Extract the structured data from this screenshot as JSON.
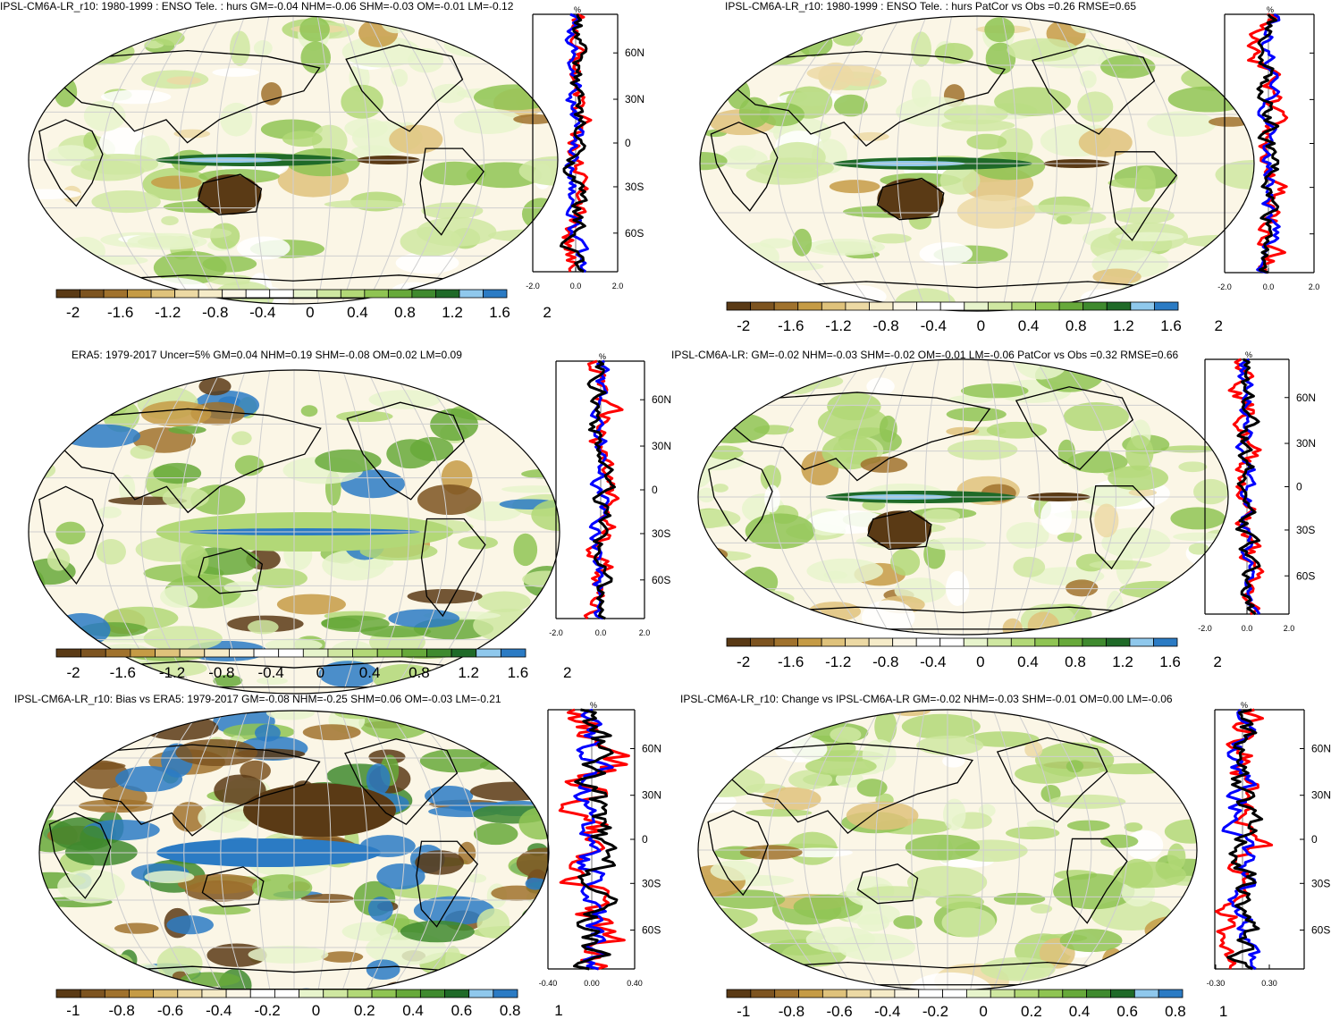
{
  "colorbar": {
    "colors": [
      "#5a3a15",
      "#7d5420",
      "#a0722d",
      "#c59b45",
      "#dfc27b",
      "#ecd9a4",
      "#f5ebc8",
      "#fbf6e6",
      "#ffffff",
      "#ffffff",
      "#e7f4cc",
      "#cfe7a1",
      "#b2d877",
      "#8fc453",
      "#67a93a",
      "#3f8a2e",
      "#1f6a28",
      "#8fc8ec",
      "#2b7bc4"
    ]
  },
  "panels": [
    {
      "id": "p1",
      "title": "IPSL-CM6A-LR_r10: 1980-1999 : ENSO Tele. : hurs GM=-0.04 NHM=-0.06 SHM=-0.03 OM=-0.01 LM=-0.12",
      "cbar_labels": [
        "-2",
        "-1.6",
        "-1.2",
        "-0.8",
        "-0.4",
        "0",
        "0.4",
        "0.8",
        "1.2",
        "1.6",
        "2"
      ],
      "profile_unit": "%",
      "lat_labels": [
        "60N",
        "30N",
        "0",
        "30S",
        "60S"
      ],
      "profile_xticks": [
        "-2.0",
        "0.0",
        "2.0"
      ]
    },
    {
      "id": "p2",
      "title": "IPSL-CM6A-LR_r10: 1980-1999 : ENSO Tele. : hurs PatCor vs Obs =0.26 RMSE=0.65",
      "cbar_labels": [
        "-2",
        "-1.6",
        "-1.2",
        "-0.8",
        "-0.4",
        "0",
        "0.4",
        "0.8",
        "1.2",
        "1.6",
        "2"
      ],
      "profile_unit": "%",
      "lat_labels": [],
      "profile_xticks": [
        "-2.0",
        "0.0",
        "2.0"
      ]
    },
    {
      "id": "p3",
      "title": "ERA5: 1979-2017 Uncer=5% GM=0.04 NHM=0.19 SHM=-0.08 OM=0.02 LM=0.09",
      "cbar_labels": [
        "-2",
        "-1.6",
        "-1.2",
        "-0.8",
        "-0.4",
        "0",
        "0.4",
        "0.8",
        "1.2",
        "1.6",
        "2"
      ],
      "profile_unit": "%",
      "lat_labels": [
        "60N",
        "30N",
        "0",
        "30S",
        "60S"
      ],
      "profile_xticks": [
        "-2.0",
        "0.0",
        "2.0"
      ]
    },
    {
      "id": "p4",
      "title": "IPSL-CM6A-LR: GM=-0.02 NHM=-0.03 SHM=-0.02 OM=-0.01 LM=-0.06 PatCor vs Obs =0.32 RMSE=0.66",
      "cbar_labels": [
        "-2",
        "-1.6",
        "-1.2",
        "-0.8",
        "-0.4",
        "0",
        "0.4",
        "0.8",
        "1.2",
        "1.6",
        "2"
      ],
      "profile_unit": "%",
      "lat_labels": [
        "60N",
        "30N",
        "0",
        "30S",
        "60S"
      ],
      "profile_xticks": [
        "-2.0",
        "0.0",
        "2.0"
      ]
    },
    {
      "id": "p5",
      "title": "IPSL-CM6A-LR_r10: Bias vs ERA5: 1979-2017 GM=-0.08 NHM=-0.25 SHM=0.06 OM=-0.03 LM=-0.21",
      "cbar_labels": [
        "-1",
        "-0.8",
        "-0.6",
        "-0.4",
        "-0.2",
        "0",
        "0.2",
        "0.4",
        "0.6",
        "0.8",
        "1"
      ],
      "profile_unit": "%",
      "lat_labels": [
        "60N",
        "30N",
        "0",
        "30S",
        "60S"
      ],
      "profile_xticks": [
        "-0.40",
        "0.00",
        "0.40"
      ]
    },
    {
      "id": "p6",
      "title": "IPSL-CM6A-LR_r10: Change vs IPSL-CM6A-LR GM=-0.02 NHM=-0.03 SHM=-0.01 OM=0.00 LM=-0.06",
      "cbar_labels": [
        "-1",
        "-0.8",
        "-0.6",
        "-0.4",
        "-0.2",
        "0",
        "0.2",
        "0.4",
        "0.6",
        "0.8",
        "1"
      ],
      "profile_unit": "%",
      "lat_labels": [
        "60N",
        "30N",
        "0",
        "30S",
        "60S"
      ],
      "profile_xticks": [
        "-0.30",
        "0.30"
      ]
    }
  ],
  "chart_data": [
    {
      "type": "heatmap",
      "title": "IPSL-CM6A-LR_r10: 1980-1999 : ENSO Tele. : hurs GM=-0.04 NHM=-0.06 SHM=-0.03 OM=-0.01 LM=-0.12",
      "colorbar_range": [
        -2,
        2
      ],
      "colorbar_ticks": [
        -2,
        -1.6,
        -1.2,
        -0.8,
        -0.4,
        0,
        0.4,
        0.8,
        1.2,
        1.6,
        2
      ],
      "profile_xlim": [
        -2.0,
        2.0
      ],
      "profile_ylim_lat": [
        -90,
        90
      ]
    },
    {
      "type": "heatmap",
      "title": "IPSL-CM6A-LR_r10: 1980-1999 : ENSO Tele. : hurs PatCor vs Obs =0.26 RMSE=0.65",
      "colorbar_range": [
        -2,
        2
      ],
      "colorbar_ticks": [
        -2,
        -1.6,
        -1.2,
        -0.8,
        -0.4,
        0,
        0.4,
        0.8,
        1.2,
        1.6,
        2
      ],
      "profile_xlim": [
        -2.0,
        2.0
      ],
      "profile_ylim_lat": [
        -90,
        90
      ]
    },
    {
      "type": "heatmap",
      "title": "ERA5: 1979-2017 Uncer=5% GM=0.04 NHM=0.19 SHM=-0.08 OM=0.02 LM=0.09",
      "colorbar_range": [
        -2,
        2
      ],
      "colorbar_ticks": [
        -2,
        -1.6,
        -1.2,
        -0.8,
        -0.4,
        0,
        0.4,
        0.8,
        1.2,
        1.6,
        2
      ],
      "profile_xlim": [
        -2.0,
        2.0
      ],
      "profile_ylim_lat": [
        -90,
        90
      ]
    },
    {
      "type": "heatmap",
      "title": "IPSL-CM6A-LR: GM=-0.02 NHM=-0.03 SHM=-0.02 OM=-0.01 LM=-0.06 PatCor vs Obs =0.32 RMSE=0.66",
      "colorbar_range": [
        -2,
        2
      ],
      "colorbar_ticks": [
        -2,
        -1.6,
        -1.2,
        -0.8,
        -0.4,
        0,
        0.4,
        0.8,
        1.2,
        1.6,
        2
      ],
      "profile_xlim": [
        -2.0,
        2.0
      ],
      "profile_ylim_lat": [
        -90,
        90
      ]
    },
    {
      "type": "heatmap",
      "title": "IPSL-CM6A-LR_r10: Bias vs ERA5: 1979-2017 GM=-0.08 NHM=-0.25 SHM=0.06 OM=-0.03 LM=-0.21",
      "colorbar_range": [
        -1,
        1
      ],
      "colorbar_ticks": [
        -1,
        -0.8,
        -0.6,
        -0.4,
        -0.2,
        0,
        0.2,
        0.4,
        0.6,
        0.8,
        1
      ],
      "profile_xlim": [
        -0.4,
        0.4
      ],
      "profile_ylim_lat": [
        -90,
        90
      ]
    },
    {
      "type": "heatmap",
      "title": "IPSL-CM6A-LR_r10: Change vs IPSL-CM6A-LR GM=-0.02 NHM=-0.03 SHM=-0.01 OM=0.00 LM=-0.06",
      "colorbar_range": [
        -1,
        1
      ],
      "colorbar_ticks": [
        -1,
        -0.8,
        -0.6,
        -0.4,
        -0.2,
        0,
        0.2,
        0.4,
        0.6,
        0.8,
        1
      ],
      "profile_xlim": [
        -0.3,
        0.3
      ],
      "profile_ylim_lat": [
        -90,
        90
      ]
    }
  ]
}
